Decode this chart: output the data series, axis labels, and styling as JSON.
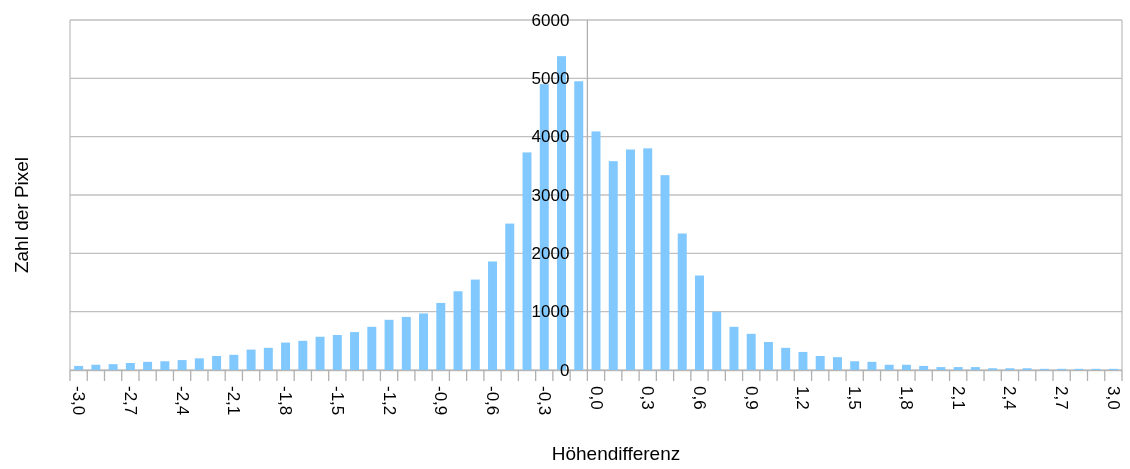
{
  "chart_data": {
    "type": "bar",
    "xlabel": "Höhendifferenz",
    "ylabel": "Zahl der Pixel",
    "categories": [
      "-3,0",
      null,
      null,
      "-2,7",
      null,
      null,
      "-2,4",
      null,
      null,
      "-2,1",
      null,
      null,
      "-1,8",
      null,
      null,
      "-1,5",
      null,
      null,
      "-1,2",
      null,
      null,
      "-0,9",
      null,
      null,
      "-0,6",
      null,
      null,
      "-0,3",
      null,
      null,
      "0,0",
      null,
      null,
      "0,3",
      null,
      null,
      "0,6",
      null,
      null,
      "0,9",
      null,
      null,
      "1,2",
      null,
      null,
      "1,5",
      null,
      null,
      "1,8",
      null,
      null,
      "2,1",
      null,
      null,
      "2,4",
      null,
      null,
      "2,7",
      null,
      null,
      "3,0"
    ],
    "values": [
      70,
      90,
      100,
      120,
      140,
      150,
      170,
      200,
      240,
      260,
      350,
      380,
      470,
      500,
      570,
      600,
      650,
      740,
      860,
      910,
      970,
      1150,
      1350,
      1550,
      1860,
      2510,
      3730,
      4900,
      5380,
      4950,
      4090,
      3580,
      3780,
      3800,
      3340,
      2340,
      1620,
      1000,
      740,
      620,
      480,
      380,
      310,
      240,
      220,
      150,
      140,
      90,
      90,
      70,
      50,
      50,
      50,
      30,
      30,
      30,
      20,
      20,
      20,
      20,
      20
    ],
    "color": "#81c8fe",
    "ylim": [
      0,
      6000
    ],
    "yticks": [
      0,
      1000,
      2000,
      3000,
      4000,
      5000,
      6000
    ],
    "grid": "y"
  }
}
